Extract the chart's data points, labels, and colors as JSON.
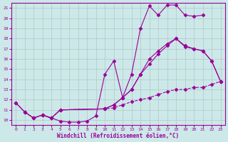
{
  "background_color": "#cce8e8",
  "grid_color": "#b0c8c8",
  "line_color": "#990099",
  "xlabel": "Windchill (Refroidissement éolien,°C)",
  "xlim": [
    -0.5,
    23.5
  ],
  "ylim": [
    9.5,
    21.5
  ],
  "yticks": [
    10,
    11,
    12,
    13,
    14,
    15,
    16,
    17,
    18,
    19,
    20,
    21
  ],
  "xticks": [
    0,
    1,
    2,
    3,
    4,
    5,
    6,
    7,
    8,
    9,
    10,
    11,
    12,
    13,
    14,
    15,
    16,
    17,
    18,
    19,
    20,
    21,
    22,
    23
  ],
  "curves": [
    {
      "x": [
        0,
        1,
        2,
        3,
        4,
        5,
        6,
        7,
        8,
        9,
        10,
        11,
        12,
        13,
        14,
        15,
        16,
        17,
        18,
        19,
        20,
        21
      ],
      "y": [
        11.7,
        10.8,
        10.2,
        10.5,
        10.2,
        9.9,
        9.8,
        9.8,
        9.9,
        10.4,
        14.5,
        15.8,
        12.2,
        14.5,
        19.0,
        21.2,
        20.3,
        21.3,
        21.3,
        20.3,
        20.2,
        20.3
      ],
      "linestyle": "-",
      "marker": "D",
      "markersize": 2.5
    },
    {
      "x": [
        0,
        1,
        2,
        3,
        4,
        5,
        10,
        11,
        12,
        13,
        14,
        15,
        16,
        17,
        18,
        19,
        20,
        21,
        22,
        23
      ],
      "y": [
        11.7,
        10.8,
        10.2,
        10.5,
        10.2,
        11.0,
        11.1,
        11.5,
        12.2,
        13.0,
        14.5,
        16.0,
        16.8,
        17.5,
        18.0,
        17.2,
        17.0,
        16.8,
        15.8,
        13.8
      ],
      "linestyle": "-",
      "marker": "D",
      "markersize": 2.5
    },
    {
      "x": [
        1,
        2,
        3,
        4,
        5,
        10,
        11,
        12,
        13,
        14,
        15,
        16,
        17,
        18,
        19,
        20,
        21,
        22,
        23
      ],
      "y": [
        10.8,
        10.2,
        10.5,
        10.2,
        11.0,
        11.1,
        11.2,
        11.5,
        11.8,
        12.0,
        12.2,
        12.5,
        12.8,
        13.0,
        13.0,
        13.2,
        13.2,
        13.5,
        13.8
      ],
      "linestyle": "--",
      "marker": "D",
      "markersize": 2.5
    },
    {
      "x": [
        3,
        4,
        5,
        10,
        11,
        12,
        13,
        14,
        15,
        16,
        17,
        18,
        19,
        20,
        21,
        22,
        23
      ],
      "y": [
        10.5,
        10.2,
        11.0,
        11.1,
        11.5,
        12.2,
        13.0,
        14.5,
        15.5,
        16.5,
        17.3,
        18.0,
        17.3,
        17.0,
        16.8,
        15.8,
        13.8
      ],
      "linestyle": "-",
      "marker": "D",
      "markersize": 2.5
    }
  ]
}
